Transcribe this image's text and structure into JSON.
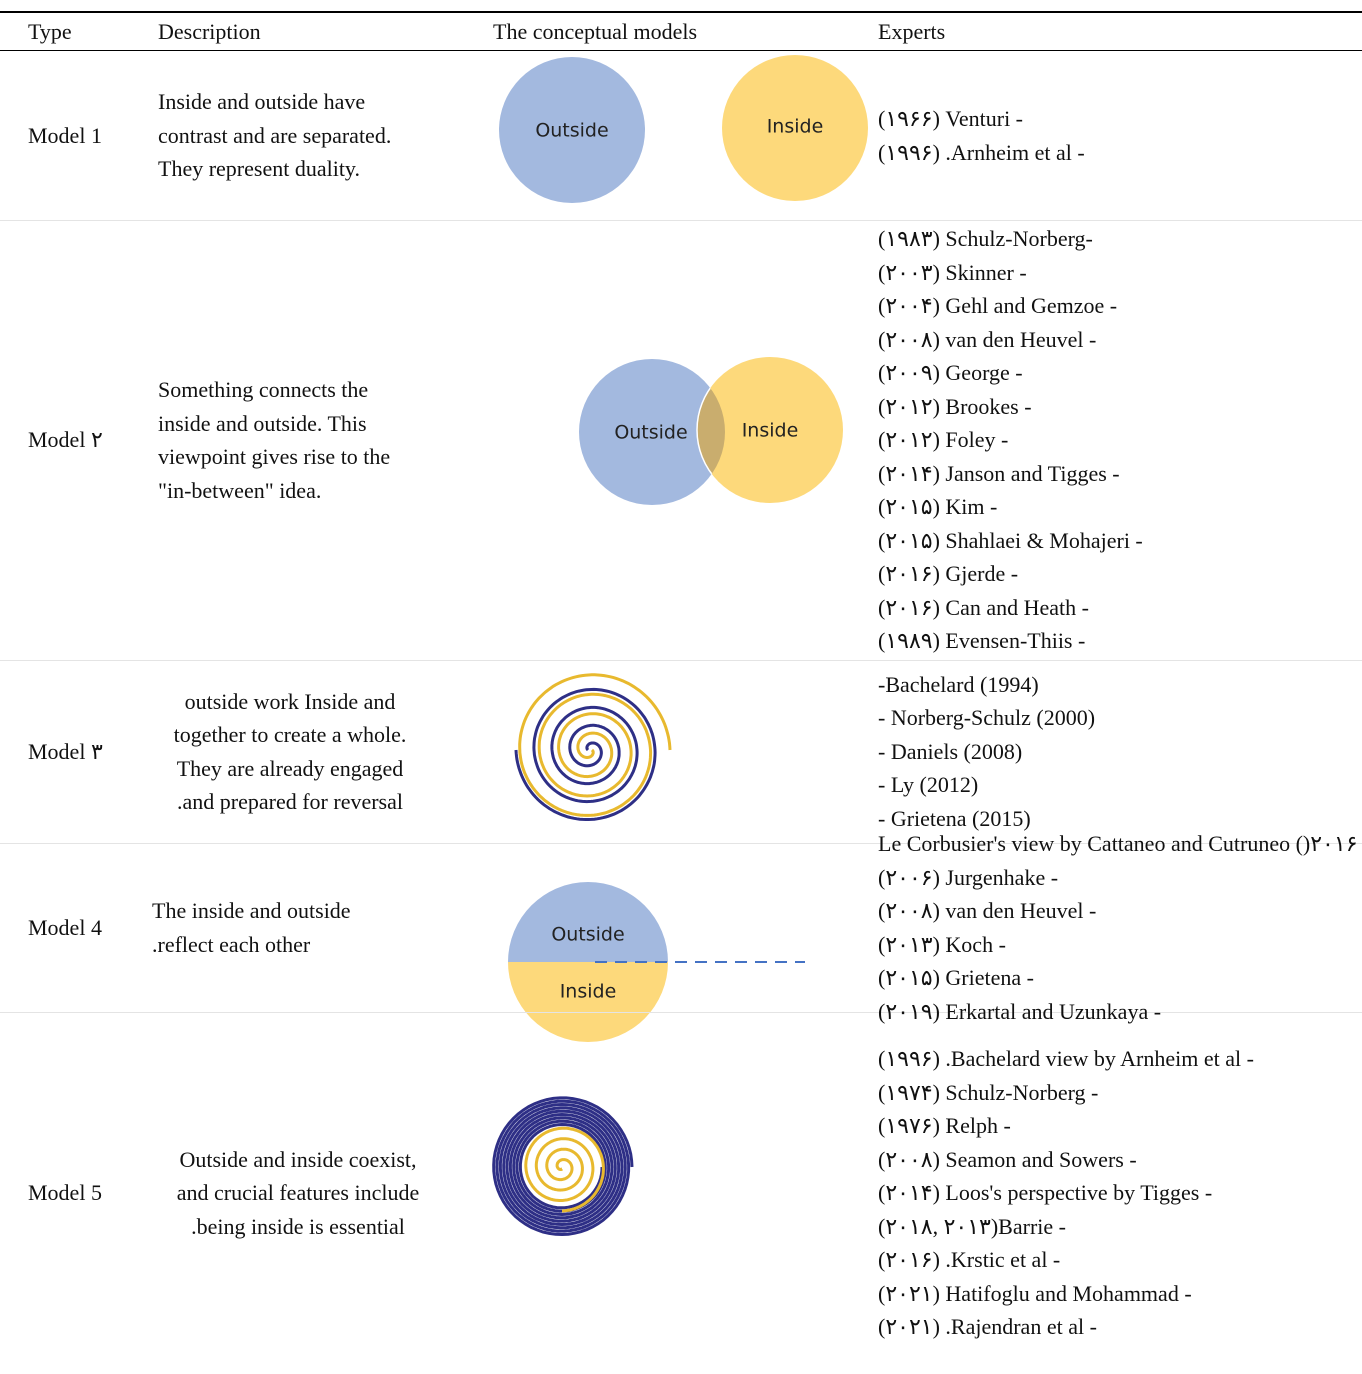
{
  "header": [
    "Type",
    "Description",
    "The conceptual models",
    "Experts"
  ],
  "rows": [
    {
      "type": "Model 1",
      "description": [
        "Inside and outside have",
        "contrast and are separated.",
        "They represent duality."
      ],
      "model_labels": [
        "Outside",
        "Inside"
      ],
      "experts": [
        "(۱۹۶۶) Venturi -",
        "(۱۹۹۶) .Arnheim et al -"
      ]
    },
    {
      "type": "Model ۲",
      "description": [
        "Something connects the",
        "inside and outside. This",
        "viewpoint gives rise to the",
        "\"in-between\" idea."
      ],
      "model_labels": [
        "Outside",
        "Inside"
      ],
      "experts": [
        "(۱۹۸۳) Schulz-Norberg-",
        "(۲۰۰۳) Skinner -",
        "(۲۰۰۴) Gehl and Gemzoe -",
        "(۲۰۰۸) van den Heuvel -",
        "(۲۰۰۹) George -",
        "(۲۰۱۲) Brookes -",
        "(۲۰۱۲) Foley -",
        "(۲۰۱۴) Janson and Tigges -",
        "(۲۰۱۵) Kim -",
        "(۲۰۱۵) Shahlaei & Mohajeri -",
        "(۲۰۱۶) Gjerde -",
        "(۲۰۱۶) Can and Heath -",
        "(۱۹۸۹) Evensen-Thiis -"
      ]
    },
    {
      "type": "Model ۳",
      "description": [
        "outside work  Inside and",
        "together to create a whole.",
        "They are already engaged",
        ".and prepared for reversal"
      ],
      "experts": [
        "-Bachelard (1994)",
        "- Norberg-Schulz (2000)",
        "- Daniels (2008)",
        "- Ly (2012)",
        "- Grietena (2015)"
      ]
    },
    {
      "type": "Model 4",
      "description": [
        "The inside and outside",
        ".reflect each other"
      ],
      "model_labels": [
        "Outside",
        "Inside"
      ],
      "experts": [
        "Le Corbusier's view by Cattaneo and Cutruneo ()۲۰۱۶",
        "(۲۰۰۶) Jurgenhake -",
        "(۲۰۰۸) van den Heuvel -",
        "(۲۰۱۳) Koch -",
        "(۲۰۱۵) Grietena -",
        "(۲۰۱۹) Erkartal and Uzunkaya -"
      ]
    },
    {
      "type": "Model 5",
      "description": [
        "Outside and inside coexist,",
        "and crucial features include",
        ".being inside is essential"
      ],
      "experts": [
        "(۱۹۹۶) .Bachelard view by Arnheim et al -",
        "(۱۹۷۴) Schulz-Norberg -",
        "(۱۹۷۶) Relph -",
        "(۲۰۰۸) Seamon and Sowers -",
        "(۲۰۱۴) Loos's perspective by Tigges -",
        "(۲۰۱۸, ۲۰۱۳)Barrie  -",
        "(۲۰۱۶) .Krstic et al -",
        "(۲۰۲۱) Hatifoglu and Mohammad -",
        "(۲۰۲۱) .Rajendran et al -"
      ]
    }
  ]
}
